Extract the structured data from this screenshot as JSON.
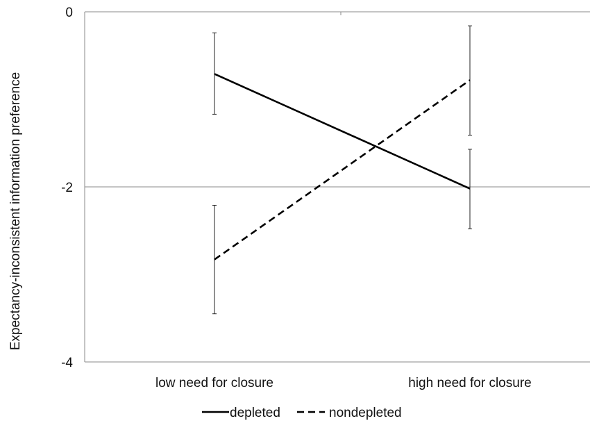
{
  "chart_data": {
    "type": "line",
    "ylabel": "Expectancy-inconsistent information preference",
    "categories": [
      "low need for closure",
      "high need for closure"
    ],
    "ylim": [
      -4,
      0
    ],
    "yticks": [
      0,
      -2,
      -4
    ],
    "gridlines": [
      -2
    ],
    "series": [
      {
        "name": "depleted",
        "line_style": "solid",
        "values": [
          -0.71,
          -2.02
        ],
        "error_low": [
          -1.17,
          -2.48
        ],
        "error_high": [
          -0.24,
          -1.57
        ]
      },
      {
        "name": "nondepleted",
        "line_style": "dashed",
        "values": [
          -2.83,
          -0.78
        ],
        "error_low": [
          -3.45,
          -1.41
        ],
        "error_high": [
          -2.21,
          -0.16
        ]
      }
    ],
    "legend_position": "bottom"
  },
  "colors": {
    "line": "#000000",
    "axis": "#8a8a8a",
    "grid": "#8a8a8a",
    "errorbar": "#222222"
  }
}
